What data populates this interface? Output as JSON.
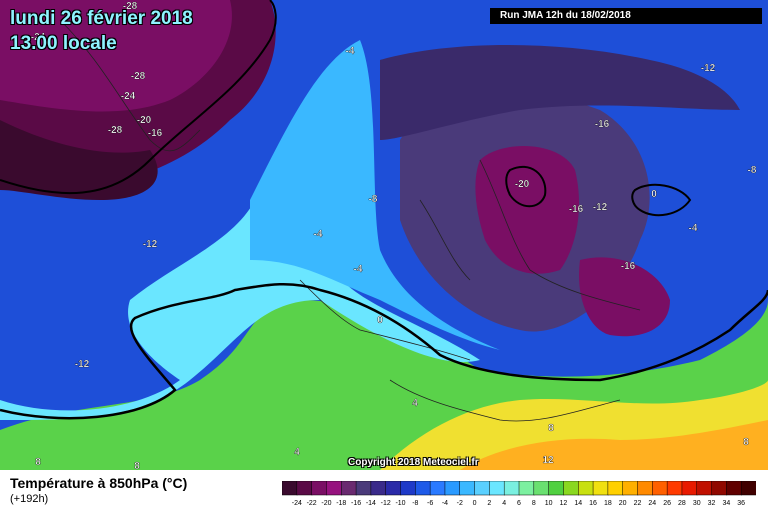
{
  "header": {
    "date_title": "lundi 26 février 2018",
    "time_title": "13.00 locale",
    "run_info": "Run JMA 12h du 18/02/2018"
  },
  "map": {
    "copyright": "Copyright 2018 Meteociel.fr",
    "contour_labels": [
      "-28",
      "-24",
      "-28",
      "-24",
      "-20",
      "-28",
      "-16",
      "-4",
      "-12",
      "-16",
      "-8",
      "-20",
      "-16",
      "-12",
      "-8",
      "-12",
      "-4",
      "-4",
      "-16",
      "0",
      "-4",
      "-12",
      "0",
      "4",
      "4",
      "8",
      "8",
      "12",
      "8",
      "8"
    ]
  },
  "footer": {
    "parameter": "Température à 850hPa (°C)",
    "lead_time": "(+192h)"
  },
  "legend": {
    "ticks": [
      "-24",
      "-22",
      "-20",
      "-18",
      "-16",
      "-14",
      "-12",
      "-10",
      "-8",
      "-6",
      "-4",
      "-2",
      "0",
      "2",
      "4",
      "6",
      "8",
      "10",
      "12",
      "14",
      "16",
      "18",
      "20",
      "22",
      "24",
      "26",
      "28",
      "30",
      "32",
      "34",
      "36"
    ],
    "colors": [
      "#3a0a2e",
      "#5a0a46",
      "#7a0e64",
      "#96127e",
      "#6a2a70",
      "#4a3a7a",
      "#3a2a8a",
      "#2a2aa8",
      "#1e3ac8",
      "#1e5ae8",
      "#2a7aff",
      "#2a9aff",
      "#3ab8ff",
      "#5ad0ff",
      "#6ae6ff",
      "#7af0e0",
      "#7cf0a0",
      "#6ae070",
      "#50d040",
      "#8ad820",
      "#c8e010",
      "#f0e010",
      "#ffd000",
      "#ffb000",
      "#ff8a00",
      "#ff6000",
      "#ff3a00",
      "#e81a00",
      "#c01000",
      "#900800",
      "#600000",
      "#400000"
    ]
  }
}
